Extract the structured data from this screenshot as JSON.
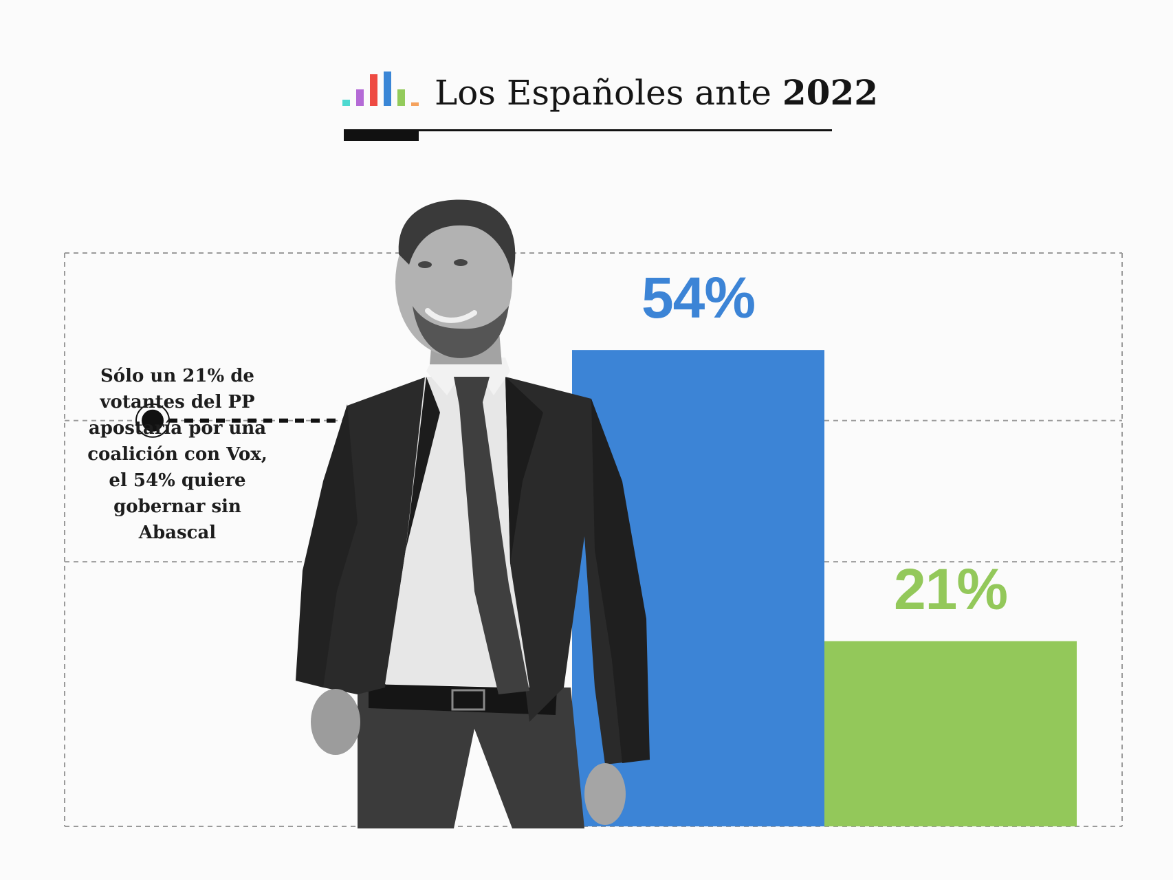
{
  "header": {
    "title_regular": "Los Españoles ante",
    "title_bold": "2022",
    "logo_icon": "bar-chart-logo-icon",
    "logo_colors": [
      "#4dd9d0",
      "#b46ad6",
      "#ee4a42",
      "#3a86d6",
      "#93cb5b",
      "#f5a25d"
    ]
  },
  "annotation": {
    "text": "Sólo un 21% de votantes del PP apostaría por una coalición con Vox, el 54% quiere gobernar sin Abascal"
  },
  "chart_data": {
    "type": "bar",
    "categories": [
      "",
      ""
    ],
    "values": [
      54,
      21
    ],
    "value_labels": [
      "54%",
      "21%"
    ],
    "colors": [
      "#3c84d6",
      "#93c85a"
    ],
    "ylim": [
      0,
      65
    ],
    "reference_lines": [
      0,
      30,
      46,
      65
    ],
    "marker_value": 46,
    "grid": "dashed",
    "title": "",
    "xlabel": "",
    "ylabel": ""
  },
  "photo": {
    "icon": "person-in-suit-photo"
  }
}
